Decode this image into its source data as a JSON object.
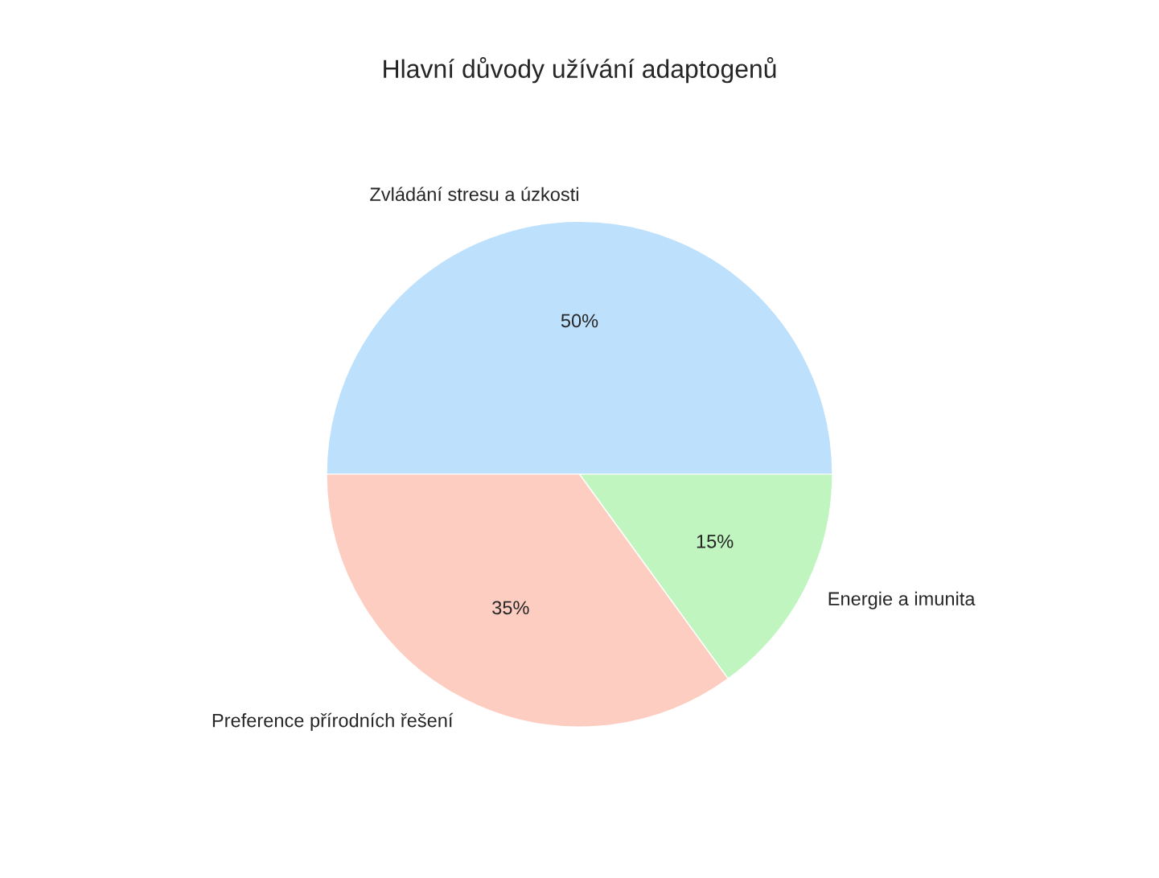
{
  "chart_data": {
    "type": "pie",
    "title": "Hlavní důvody užívání adaptogenů",
    "categories": [
      "Zvládání stresu a úzkosti",
      "Preference přírodních řešení",
      "Energie a imunita"
    ],
    "values": [
      50,
      35,
      15
    ],
    "value_labels": [
      "50%",
      "35%",
      "15%"
    ],
    "colors": [
      "#bde0fc",
      "#fecdc1",
      "#c1f5c0"
    ]
  }
}
